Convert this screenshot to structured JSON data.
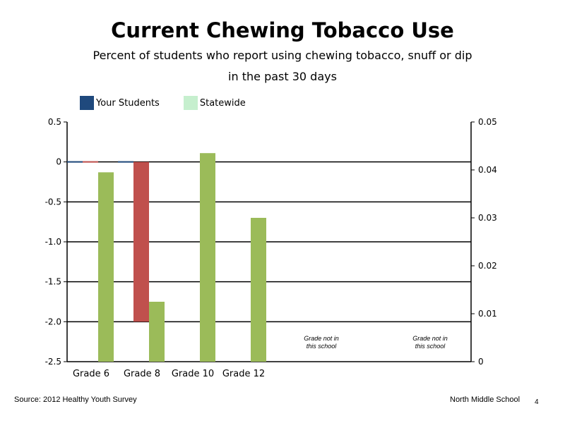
{
  "header": {
    "title": "Current Chewing Tobacco Use",
    "subtitle_line1": "Percent of students who report using chewing tobacco, snuff or dip",
    "subtitle_line2": "in the past 30 days"
  },
  "legend": {
    "your_students": "Your Students",
    "statewide": "Statewide"
  },
  "colors": {
    "your_students": "#1f497d",
    "statewide": "#c6efce",
    "grade6_statewide_bar": "#9bbb59",
    "grade8_red_bar": "#c0504d",
    "gridline": "#000000"
  },
  "footer": {
    "source": "Source: 2012 Healthy Youth Survey",
    "school": "North Middle  School",
    "page": "4"
  },
  "chart_data": {
    "type": "bar",
    "categories": [
      "Grade 6",
      "Grade 8",
      "Grade 10",
      "Grade 12",
      "",
      ""
    ],
    "left_axis": {
      "ylim": [
        -2.5,
        0.5
      ],
      "ticks": [
        "0.5",
        "0",
        "-0.5",
        "-1.0",
        "-1.5",
        "-2.0",
        "-2.5"
      ],
      "tick_values": [
        0.5,
        0,
        -0.5,
        -1.0,
        -1.5,
        -2.0,
        -2.5
      ]
    },
    "right_axis": {
      "ylim": [
        0,
        0.05
      ],
      "ticks": [
        "0.05",
        "0.04",
        "0.03",
        "0.02",
        "0.01",
        "0"
      ],
      "tick_values": [
        0.05,
        0.04,
        0.03,
        0.02,
        0.01,
        0
      ]
    },
    "series": [
      {
        "name": "Your Students",
        "axis": "left",
        "values": [
          0,
          0,
          null,
          null,
          null,
          null
        ]
      },
      {
        "name": "",
        "axis": "left",
        "values": [
          0,
          -2.0,
          null,
          null,
          null,
          null
        ]
      },
      {
        "name": "Statewide",
        "axis": "right",
        "values": [
          0.0395,
          0.0125,
          0.0435,
          0.03,
          null,
          null
        ]
      }
    ],
    "annotations": [
      {
        "category_index": 4,
        "line1": "Grade not in",
        "line2": "this school"
      },
      {
        "category_index": 5,
        "line1": "Grade not in",
        "line2": "this school"
      }
    ],
    "grid": true,
    "legend_position": "top-left"
  }
}
